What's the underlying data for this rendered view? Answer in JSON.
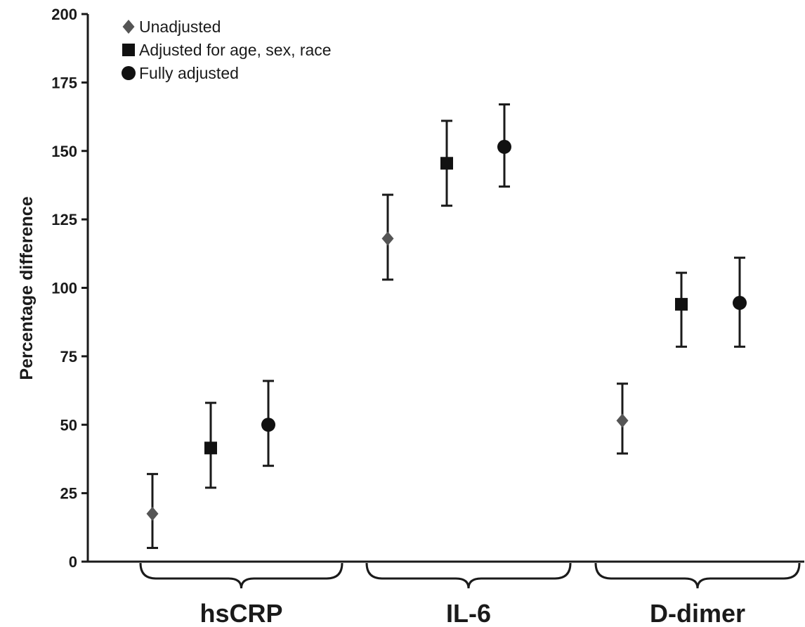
{
  "chart_data": {
    "type": "scatter",
    "title": "",
    "ylabel": "Percentage  difference",
    "xlabel": "",
    "ylim": [
      0,
      200
    ],
    "yticks": [
      "0",
      "25",
      "50",
      "75",
      "100",
      "125",
      "150",
      "175",
      "200"
    ],
    "grid": false,
    "legend_position": "top-left",
    "categories": [
      "hsCRP",
      "IL-6",
      "D-dimer"
    ],
    "series": [
      {
        "name": "Unadjusted",
        "marker": "diamond",
        "color": "#555555",
        "values": [
          17.5,
          118,
          51.5
        ],
        "lower": [
          5,
          103,
          39.5
        ],
        "upper": [
          32,
          134,
          65
        ]
      },
      {
        "name": "Adjusted for age, sex, race",
        "marker": "square",
        "color": "#111111",
        "values": [
          41.5,
          145.5,
          94
        ],
        "lower": [
          27,
          130,
          78.5
        ],
        "upper": [
          58,
          161,
          105.5
        ]
      },
      {
        "name": "Fully adjusted",
        "marker": "circle",
        "color": "#111111",
        "values": [
          50,
          151.5,
          94.5
        ],
        "lower": [
          35,
          137,
          78.5
        ],
        "upper": [
          66,
          167,
          111
        ]
      }
    ]
  }
}
